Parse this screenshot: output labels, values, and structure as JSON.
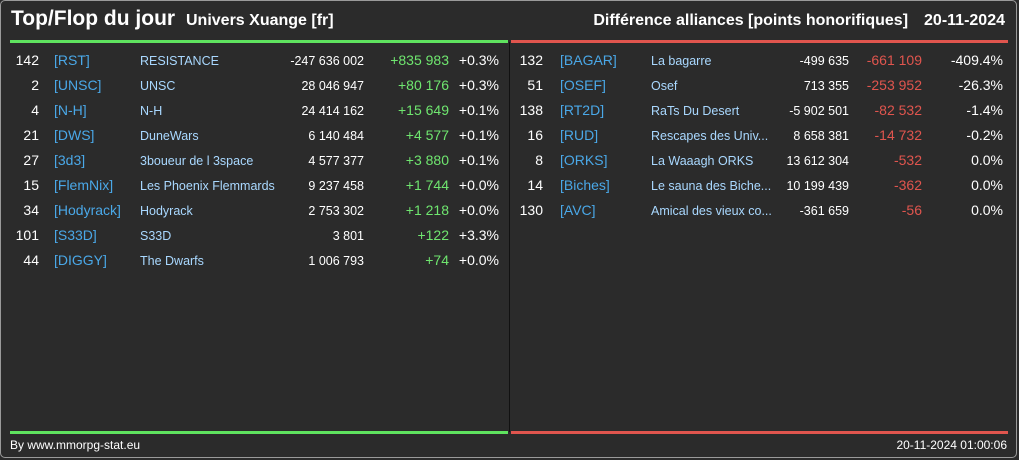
{
  "header": {
    "title": "Top/Flop du jour",
    "universe": "Univers Xuange [fr]",
    "metric": "Différence alliances [points honorifiques]",
    "date": "20-11-2024"
  },
  "colors": {
    "up": "#6fe66f",
    "down": "#e0554e",
    "tag": "#4aa8e8",
    "name": "#a9d8ff"
  },
  "top": [
    {
      "rank": "142",
      "tag": "[RST]",
      "name": "RESISTANCE",
      "points": "-247 636 002",
      "diff": "+835 983",
      "pct": "+0.3%"
    },
    {
      "rank": "2",
      "tag": "[UNSC]",
      "name": "UNSC",
      "points": "28 046 947",
      "diff": "+80 176",
      "pct": "+0.3%"
    },
    {
      "rank": "4",
      "tag": "[N-H]",
      "name": "N-H",
      "points": "24 414 162",
      "diff": "+15 649",
      "pct": "+0.1%"
    },
    {
      "rank": "21",
      "tag": "[DWS]",
      "name": "DuneWars",
      "points": "6 140 484",
      "diff": "+4 577",
      "pct": "+0.1%"
    },
    {
      "rank": "27",
      "tag": "[3d3]",
      "name": "3boueur de l 3space",
      "points": "4 577 377",
      "diff": "+3 880",
      "pct": "+0.1%"
    },
    {
      "rank": "15",
      "tag": "[FlemNix]",
      "name": "Les Phoenix Flemmards",
      "points": "9 237 458",
      "diff": "+1 744",
      "pct": "+0.0%"
    },
    {
      "rank": "34",
      "tag": "[Hodyrack]",
      "name": "Hodyrack",
      "points": "2 753 302",
      "diff": "+1 218",
      "pct": "+0.0%"
    },
    {
      "rank": "101",
      "tag": "[S33D]",
      "name": "S33D",
      "points": "3 801",
      "diff": "+122",
      "pct": "+3.3%"
    },
    {
      "rank": "44",
      "tag": "[DIGGY]",
      "name": "The Dwarfs",
      "points": "1 006 793",
      "diff": "+74",
      "pct": "+0.0%"
    }
  ],
  "flop": [
    {
      "rank": "132",
      "tag": "[BAGAR]",
      "name": "La bagarre",
      "points": "-499 635",
      "diff": "-661 109",
      "pct": "-409.4%"
    },
    {
      "rank": "51",
      "tag": "[OSEF]",
      "name": "Osef",
      "points": "713 355",
      "diff": "-253 952",
      "pct": "-26.3%"
    },
    {
      "rank": "138",
      "tag": "[RT2D]",
      "name": "RaTs Du Desert",
      "points": "-5 902 501",
      "diff": "-82 532",
      "pct": "-1.4%"
    },
    {
      "rank": "16",
      "tag": "[RUD]",
      "name": "Rescapes des Univ...",
      "points": "8 658 381",
      "diff": "-14 732",
      "pct": "-0.2%"
    },
    {
      "rank": "8",
      "tag": "[ORKS]",
      "name": "La Waaagh ORKS",
      "points": "13 612 304",
      "diff": "-532",
      "pct": "0.0%"
    },
    {
      "rank": "14",
      "tag": "[Biches]",
      "name": "Le sauna des Biche...",
      "points": "10 199 439",
      "diff": "-362",
      "pct": "0.0%"
    },
    {
      "rank": "130",
      "tag": "[AVC]",
      "name": "Amical des vieux co...",
      "points": "-361 659",
      "diff": "-56",
      "pct": "0.0%"
    }
  ],
  "footer": {
    "credit": "By www.mmorpg-stat.eu",
    "timestamp": "20-11-2024 01:00:06"
  }
}
